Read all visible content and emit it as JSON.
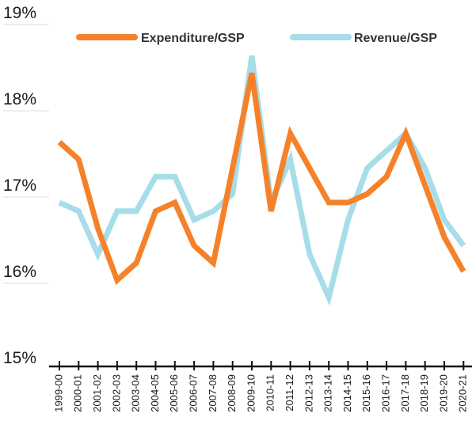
{
  "chart_data": {
    "type": "line",
    "categories": [
      "1999-00",
      "2000-01",
      "2001-02",
      "2002-03",
      "2003-04",
      "2004-05",
      "2005-06",
      "2006-07",
      "2007-08",
      "2008-09",
      "2009-10",
      "2010-11",
      "2011-12",
      "2012-13",
      "2013-14",
      "2014-15",
      "2015-16",
      "2016-17",
      "2017-18",
      "2018-19",
      "2019-20",
      "2020-21"
    ],
    "series": [
      {
        "name": "Expenditure/GSP",
        "color": "#f5822a",
        "values": [
          17.6,
          17.4,
          16.6,
          16.0,
          16.2,
          16.8,
          16.9,
          16.4,
          16.2,
          17.3,
          18.4,
          16.8,
          17.7,
          17.3,
          16.9,
          16.9,
          17.0,
          17.2,
          17.7,
          17.1,
          16.5,
          16.1
        ]
      },
      {
        "name": "Revenue/GSP",
        "color": "#a6dde8",
        "values": [
          16.9,
          16.8,
          16.3,
          16.8,
          16.8,
          17.2,
          17.2,
          16.7,
          16.8,
          17.0,
          18.6,
          16.9,
          17.4,
          16.3,
          15.8,
          16.7,
          17.3,
          17.5,
          17.7,
          17.3,
          16.7,
          16.4
        ]
      }
    ],
    "ylim": [
      15,
      19
    ],
    "yticks": [
      {
        "value": 15,
        "label": "15%"
      },
      {
        "value": 16,
        "label": "16%"
      },
      {
        "value": 17,
        "label": "17%"
      },
      {
        "value": 18,
        "label": "18%"
      },
      {
        "value": 19,
        "label": "19%"
      }
    ],
    "legend": "top",
    "grid": false
  }
}
